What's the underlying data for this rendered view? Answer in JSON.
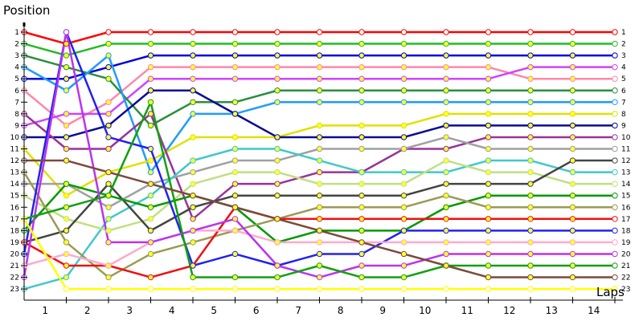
{
  "chart_data": {
    "type": "line",
    "title": "",
    "ylabel": "Position",
    "xlabel": "Laps",
    "x_ticks": [
      "1",
      "2",
      "3",
      "4",
      "5",
      "6",
      "7",
      "8",
      "9",
      "10",
      "11",
      "12",
      "13",
      "14"
    ],
    "y_ticks": [
      "1",
      "2",
      "3",
      "4",
      "5",
      "6",
      "7",
      "8",
      "9",
      "10",
      "11",
      "12",
      "13",
      "14",
      "15",
      "16",
      "17",
      "18",
      "19",
      "20",
      "21",
      "22",
      "23"
    ],
    "x": [
      0,
      1,
      2,
      3,
      4,
      5,
      6,
      7,
      8,
      9,
      10,
      11,
      12,
      13,
      14
    ],
    "ylim": [
      1,
      23
    ],
    "y_inverted": true,
    "grid": false,
    "legend": "none",
    "series": [
      {
        "color": "#ff0000",
        "values": [
          1,
          2,
          1,
          1,
          1,
          1,
          1,
          1,
          1,
          1,
          1,
          1,
          1,
          1,
          1
        ]
      },
      {
        "color": "#22bb22",
        "values": [
          2,
          3,
          2,
          2,
          2,
          2,
          2,
          2,
          2,
          2,
          2,
          2,
          2,
          2,
          2
        ]
      },
      {
        "color": "#0000dd",
        "values": [
          5,
          5,
          4,
          3,
          3,
          3,
          3,
          3,
          3,
          3,
          3,
          3,
          3,
          3,
          3
        ]
      },
      {
        "color": "#ff88aa",
        "values": [
          6,
          9,
          7,
          4,
          4,
          4,
          4,
          4,
          4,
          4,
          4,
          4,
          5,
          5,
          5
        ]
      },
      {
        "color": "#cc44ff",
        "values": [
          9,
          8,
          8,
          5,
          5,
          5,
          5,
          5,
          5,
          5,
          5,
          5,
          4,
          4,
          4
        ]
      },
      {
        "color": "#2a8f3a",
        "values": [
          3,
          4,
          5,
          9,
          7,
          7,
          6,
          6,
          6,
          6,
          6,
          6,
          6,
          6,
          6
        ]
      },
      {
        "color": "#1e9bff",
        "values": [
          4,
          6,
          3,
          13,
          8,
          8,
          7,
          7,
          7,
          7,
          7,
          7,
          7,
          7,
          7
        ]
      },
      {
        "color": "#e0e000",
        "values": [
          11,
          15,
          13,
          12,
          10,
          10,
          10,
          9,
          9,
          9,
          8,
          8,
          8,
          8,
          8
        ]
      },
      {
        "color": "#0a0a96",
        "values": [
          10,
          10,
          9,
          6,
          6,
          8,
          10,
          10,
          10,
          10,
          9,
          9,
          9,
          9,
          9
        ]
      },
      {
        "color": "#993399",
        "values": [
          8,
          11,
          11,
          8,
          17,
          14,
          14,
          13,
          13,
          11,
          11,
          10,
          10,
          10,
          10
        ]
      },
      {
        "color": "#a0a0a0",
        "values": [
          14,
          14,
          16,
          14,
          13,
          12,
          12,
          11,
          11,
          11,
          10,
          11,
          11,
          11,
          11
        ]
      },
      {
        "color": "#40c8c8",
        "values": [
          23,
          22,
          17,
          15,
          12,
          11,
          11,
          12,
          13,
          13,
          13,
          12,
          12,
          13,
          13
        ]
      },
      {
        "color": "#bfe080",
        "values": [
          15,
          17,
          18,
          17,
          14,
          13,
          13,
          14,
          14,
          14,
          12,
          13,
          13,
          14,
          14
        ]
      },
      {
        "color": "#444444",
        "values": [
          19,
          18,
          14,
          18,
          16,
          15,
          15,
          15,
          15,
          15,
          14,
          14,
          14,
          12,
          12
        ]
      },
      {
        "color": "#009900",
        "values": [
          18,
          14,
          15,
          16,
          15,
          16,
          19,
          18,
          18,
          18,
          16,
          15,
          15,
          15,
          15
        ]
      },
      {
        "color": "#9a9a55",
        "values": [
          13,
          19,
          22,
          20,
          19,
          18,
          17,
          16,
          16,
          16,
          15,
          16,
          16,
          16,
          16
        ]
      },
      {
        "color": "#ee1111",
        "values": [
          19,
          21,
          21,
          22,
          21,
          16,
          17,
          17,
          17,
          17,
          17,
          17,
          17,
          17,
          17
        ]
      },
      {
        "color": "#2222ee",
        "values": [
          20,
          1,
          10,
          11,
          21,
          20,
          21,
          20,
          20,
          18,
          18,
          18,
          18,
          18,
          18
        ]
      },
      {
        "color": "#ffaacc",
        "values": [
          21,
          20,
          21,
          19,
          18,
          18,
          19,
          19,
          19,
          19,
          19,
          19,
          19,
          19,
          19
        ]
      },
      {
        "color": "#bb33ee",
        "values": [
          22,
          1,
          19,
          19,
          18,
          17,
          21,
          22,
          21,
          21,
          20,
          20,
          20,
          20,
          20
        ]
      },
      {
        "color": "#11a011",
        "values": [
          17,
          16,
          15,
          7,
          22,
          22,
          22,
          21,
          22,
          22,
          21,
          21,
          21,
          21,
          21
        ]
      },
      {
        "color": "#ffff00",
        "values": [
          17,
          23,
          23,
          23,
          23,
          23,
          23,
          23,
          23,
          23,
          23,
          23,
          23,
          23,
          23
        ]
      },
      {
        "color": "#7a4a3a",
        "values": [
          12,
          12,
          13,
          14,
          15,
          16,
          17,
          18,
          19,
          20,
          21,
          22,
          22,
          22,
          22
        ]
      }
    ]
  }
}
